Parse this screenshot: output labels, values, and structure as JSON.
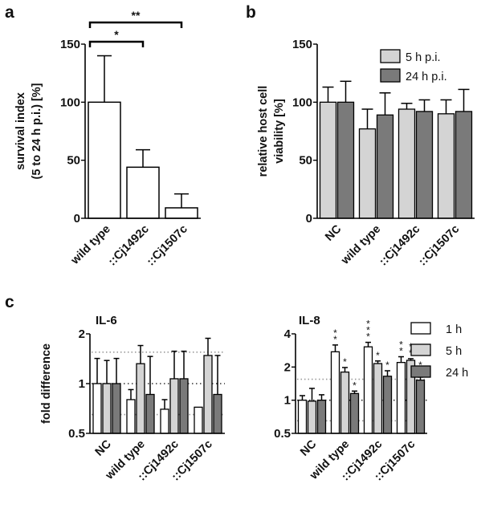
{
  "panel_letters": {
    "a": "a",
    "b": "b",
    "c": "c"
  },
  "colors": {
    "white": "#ffffff",
    "light": "#d4d4d4",
    "dark": "#7a7a7a",
    "stroke": "#000000",
    "ref": "#9a9a9a"
  },
  "chart_data": [
    {
      "id": "a",
      "type": "bar",
      "ylabel_lines": [
        "survival index",
        "(5 to 24 h p.i.) [%]"
      ],
      "categories": [
        "wild type",
        "::Cj1492c",
        "::Cj1507c"
      ],
      "series": [
        {
          "values": [
            100,
            44,
            9
          ],
          "errors": [
            40,
            15,
            12
          ],
          "color": "#ffffff"
        }
      ],
      "ylim": [
        0,
        150
      ],
      "yticks": [
        0,
        50,
        100,
        150
      ],
      "significance": [
        {
          "from": 0,
          "to": 1,
          "label": "*"
        },
        {
          "from": 0,
          "to": 2,
          "label": "**"
        }
      ]
    },
    {
      "id": "b",
      "type": "bar",
      "ylabel_lines": [
        "relative host cell",
        "viability [%]"
      ],
      "categories": [
        "NC",
        "wild type",
        "::Cj1492c",
        "::Cj1507c"
      ],
      "series": [
        {
          "name": "5 h p.i.",
          "values": [
            100,
            77,
            94,
            90
          ],
          "errors": [
            13,
            17,
            5,
            12
          ],
          "color": "#d4d4d4"
        },
        {
          "name": "24 h p.i.",
          "values": [
            100,
            89,
            92,
            92
          ],
          "errors": [
            18,
            19,
            10,
            19
          ],
          "color": "#7a7a7a"
        }
      ],
      "ylim": [
        0,
        150
      ],
      "yticks": [
        0,
        50,
        100,
        150
      ],
      "legend_position": "top-right"
    },
    {
      "id": "c1",
      "type": "bar",
      "title": "IL-6",
      "ylabel_lines": [
        "fold difference"
      ],
      "ylog": true,
      "categories": [
        "NC",
        "wild type",
        "::Cj1492c",
        "::Cj1507c"
      ],
      "series": [
        {
          "name": "1 h",
          "values": [
            1.0,
            0.8,
            0.7,
            0.72
          ],
          "errors": [
            0.42,
            0.12,
            0.1,
            0.0
          ],
          "color": "#ffffff"
        },
        {
          "name": "5 h",
          "values": [
            1.0,
            1.32,
            1.07,
            1.48
          ],
          "errors": [
            0.38,
            0.38,
            0.5,
            0.4
          ],
          "color": "#d4d4d4"
        },
        {
          "name": "24 h",
          "values": [
            1.0,
            0.86,
            1.07,
            0.86
          ],
          "errors": [
            0.42,
            0.6,
            0.5,
            0.62
          ],
          "color": "#7a7a7a"
        }
      ],
      "ylim": [
        0.5,
        2
      ],
      "yticks": [
        0.5,
        1,
        2
      ],
      "ytick_labels": [
        "0.5",
        "1",
        "2"
      ],
      "reference_lines": [
        1.55,
        1.0,
        0.65
      ]
    },
    {
      "id": "c2",
      "type": "bar",
      "title": "IL-8",
      "ylog": true,
      "categories": [
        "NC",
        "wild type",
        "::Cj1492c",
        "::Cj1507c"
      ],
      "series": [
        {
          "name": "1 h",
          "values": [
            1.0,
            2.75,
            3.05,
            2.2
          ],
          "errors": [
            0.1,
            0.42,
            0.3,
            0.28
          ],
          "color": "#ffffff",
          "marks": [
            "",
            "**",
            "***",
            "**"
          ]
        },
        {
          "name": "5 h",
          "values": [
            0.98,
            1.8,
            2.15,
            2.3
          ],
          "errors": [
            0.3,
            0.18,
            0.12,
            0.08
          ],
          "color": "#d4d4d4",
          "marks": [
            "",
            "*",
            "*",
            "**"
          ]
        },
        {
          "name": "24 h",
          "values": [
            1.0,
            1.15,
            1.65,
            1.52
          ],
          "errors": [
            0.12,
            0.06,
            0.2,
            0.1
          ],
          "color": "#7a7a7a",
          "marks": [
            "",
            "*",
            "*",
            "**"
          ]
        }
      ],
      "ylim": [
        0.5,
        4
      ],
      "yticks": [
        0.5,
        1,
        2,
        4
      ],
      "ytick_labels": [
        "0.5",
        "1",
        "2",
        "4"
      ],
      "reference_lines": [
        1.55,
        1.0,
        0.65
      ],
      "legend_position": "right"
    }
  ]
}
